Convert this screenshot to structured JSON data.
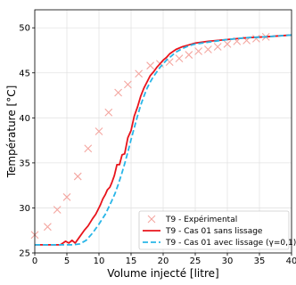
{
  "chart_data": {
    "type": "line",
    "xlabel": "Volume injecté [litre]",
    "ylabel": "Température [°C]",
    "xlim": [
      0,
      40
    ],
    "ylim": [
      25,
      52
    ],
    "xticks": [
      0,
      5,
      10,
      15,
      20,
      25,
      30,
      35,
      40
    ],
    "yticks": [
      25,
      30,
      35,
      40,
      45,
      50
    ],
    "grid": true,
    "legend_position": "lower-right",
    "series": [
      {
        "name": "T9 - Expérimental",
        "style": "scatter",
        "marker": "x",
        "color": "#f4a6a0",
        "x": [
          0,
          2,
          3.5,
          5,
          6.7,
          8.3,
          10,
          11.5,
          13,
          14.5,
          16.2,
          18,
          19.5,
          21,
          22.5,
          24,
          25.5,
          27,
          28.5,
          30,
          31.5,
          33,
          34.5,
          36
        ],
        "y": [
          27.0,
          27.9,
          29.8,
          31.2,
          33.5,
          36.6,
          38.5,
          40.6,
          42.8,
          43.7,
          44.9,
          45.8,
          46.0,
          46.2,
          46.6,
          47.0,
          47.4,
          47.6,
          47.9,
          48.2,
          48.5,
          48.6,
          48.8,
          49.0
        ]
      },
      {
        "name": "T9 - Cas 01 sans lissage",
        "style": "line",
        "color": "#e8141c",
        "x": [
          0,
          4,
          4.8,
          5.3,
          5.8,
          6.3,
          7,
          7.7,
          8.3,
          9,
          9.5,
          10.2,
          10.6,
          11,
          11.3,
          11.7,
          12,
          12.4,
          12.8,
          13.2,
          13.6,
          14,
          14.5,
          15,
          15.5,
          16,
          16.5,
          17,
          17.5,
          18,
          18.5,
          19,
          19.5,
          20,
          20.5,
          21,
          22,
          23,
          24,
          25,
          27,
          30,
          33,
          36,
          40
        ],
        "y": [
          25.9,
          25.9,
          26.3,
          26.1,
          26.4,
          26.1,
          26.8,
          27.5,
          28.0,
          28.8,
          29.3,
          30.3,
          31.0,
          31.5,
          32.0,
          32.3,
          32.8,
          33.6,
          34.8,
          34.8,
          35.9,
          36.0,
          37.8,
          38.6,
          40.2,
          41.2,
          42.4,
          43.3,
          44.0,
          44.7,
          45.1,
          45.6,
          46.0,
          46.4,
          46.7,
          47.1,
          47.6,
          47.9,
          48.1,
          48.3,
          48.5,
          48.7,
          48.9,
          49.0,
          49.2
        ]
      },
      {
        "name": "T9 - Cas 01 avec lissage (γ=0,1)",
        "style": "dashed",
        "color": "#29b6e8",
        "x": [
          0,
          6,
          7,
          8,
          9,
          10,
          11,
          12,
          12.5,
          13,
          13.5,
          14,
          14.5,
          15,
          15.5,
          16,
          16.5,
          17,
          17.5,
          18,
          18.5,
          19,
          19.5,
          20,
          20.5,
          21,
          21.5,
          22,
          23,
          24,
          25,
          27,
          30,
          33,
          36,
          40
        ],
        "y": [
          25.9,
          25.9,
          26.0,
          26.4,
          27.2,
          28.2,
          29.3,
          30.8,
          31.6,
          32.6,
          33.7,
          34.9,
          36.2,
          37.6,
          38.9,
          40.2,
          41.4,
          42.4,
          43.3,
          44.0,
          44.6,
          45.1,
          45.6,
          46.0,
          46.4,
          46.7,
          47.0,
          47.3,
          47.7,
          48.0,
          48.2,
          48.4,
          48.7,
          48.9,
          49.0,
          49.2
        ]
      }
    ]
  }
}
